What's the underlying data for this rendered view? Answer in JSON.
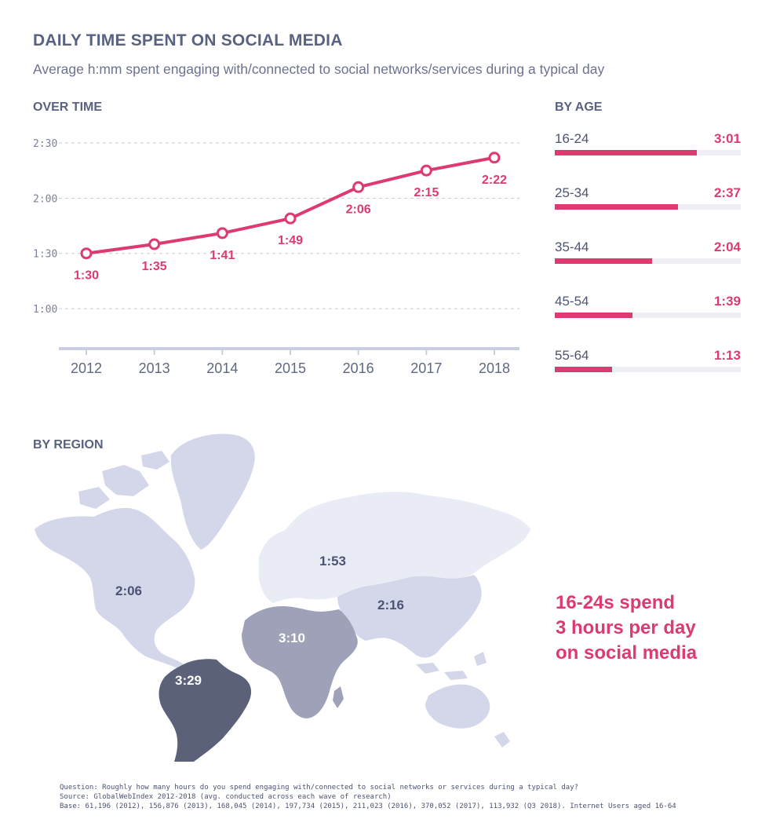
{
  "header": {
    "title": "DAILY TIME SPENT ON SOCIAL MEDIA",
    "subtitle": "Average h:mm spent engaging with/connected to social networks/services during a typical day"
  },
  "sections": {
    "over_time": "OVER TIME",
    "by_age": "BY AGE",
    "by_region": "BY REGION"
  },
  "colors": {
    "accent": "#dd3a70",
    "grid": "#c5c8d8",
    "axis": "#c9cfe1",
    "text": "#5f6783"
  },
  "chart_data": [
    {
      "type": "line",
      "title": "OVER TIME",
      "x": [
        "2012",
        "2013",
        "2014",
        "2015",
        "2016",
        "2017",
        "2018"
      ],
      "series": [
        {
          "values_minutes": [
            90,
            95,
            101,
            109,
            126,
            135,
            142
          ],
          "labels": [
            "1:30",
            "1:35",
            "1:41",
            "1:49",
            "2:06",
            "2:15",
            "2:22"
          ]
        }
      ],
      "y_ticks": [
        "1:00",
        "1:30",
        "2:00",
        "2:30"
      ],
      "y_tick_minutes": [
        60,
        90,
        120,
        150
      ],
      "ylim_minutes": [
        40,
        150
      ],
      "grid": true
    },
    {
      "type": "bar",
      "title": "BY AGE",
      "categories": [
        "16-24",
        "25-34",
        "35-44",
        "45-54",
        "55-64"
      ],
      "labels": [
        "3:01",
        "2:37",
        "2:04",
        "1:39",
        "1:13"
      ],
      "values_minutes": [
        181,
        157,
        124,
        99,
        73
      ],
      "xlim_minutes": [
        0,
        237
      ]
    },
    {
      "type": "map",
      "title": "BY REGION",
      "regions": [
        {
          "name": "North America",
          "label": "2:06",
          "color": "#d3d7e9"
        },
        {
          "name": "Europe",
          "label": "1:53",
          "color": "#e9ebf5"
        },
        {
          "name": "Asia Pacific",
          "label": "2:16",
          "color": "#d3d7e9"
        },
        {
          "name": "Middle East & Africa",
          "label": "3:10",
          "color": "#9ea1b8"
        },
        {
          "name": "Latin America",
          "label": "3:29",
          "color": "#5a6178"
        }
      ]
    }
  ],
  "callout": [
    "16-24s spend",
    "3 hours per day",
    "on social media"
  ],
  "footer": {
    "question": "Question: Roughly how many hours do you spend engaging with/connected to social networks or services during a typical day?",
    "source": "Source: GlobalWebIndex 2012-2018 (avg. conducted across each wave of research)",
    "base": "Base: 61,196 (2012), 156,876 (2013), 168,045 (2014), 197,734 (2015), 211,023 (2016), 370,052 (2017), 113,932 (Q3 2018). Internet Users aged 16-64"
  }
}
